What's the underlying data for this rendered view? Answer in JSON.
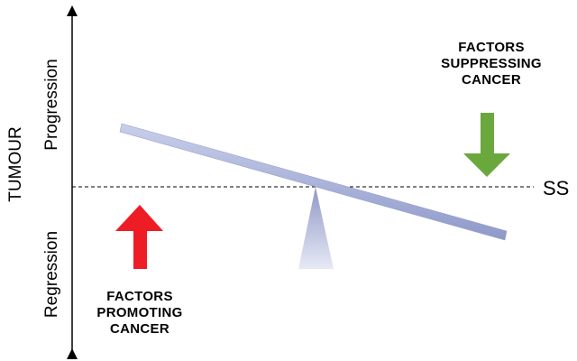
{
  "axis": {
    "title": "TUMOUR",
    "upper_label": "Progression",
    "lower_label": "Regression"
  },
  "steady_state_label": "SS",
  "suppressing": {
    "lines": [
      "FACTORS",
      "SUPPRESSING",
      "CANCER"
    ],
    "arrow_color": "#6aa83e"
  },
  "promoting": {
    "lines": [
      "FACTORS",
      "PROMOTING",
      "CANCER"
    ],
    "arrow_color": "#ee1c24"
  },
  "colors": {
    "beam": "#a9b3d8",
    "fulcrum": "#b7bedd"
  }
}
